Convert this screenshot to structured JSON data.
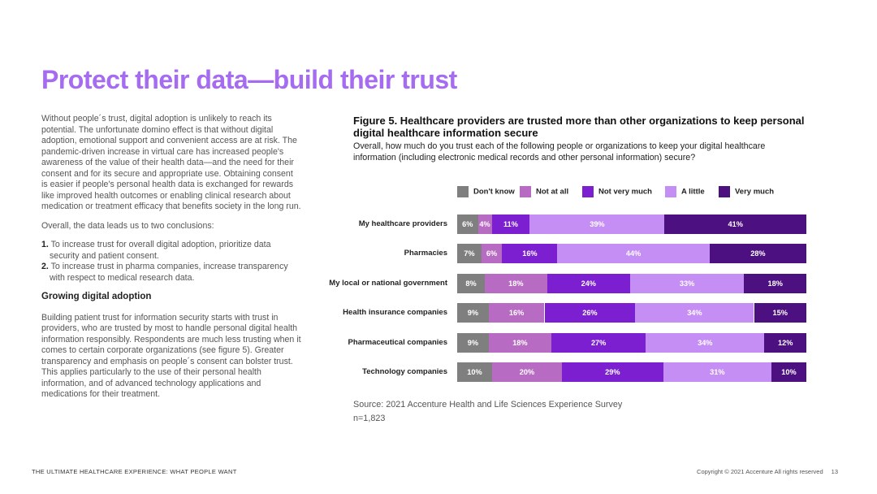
{
  "page": {
    "title": "Protect their data—build their trust",
    "footer_left": "THE ULTIMATE HEALTHCARE EXPERIENCE: WHAT PEOPLE WANT",
    "footer_right": "Copyright © 2021 Accenture All rights reserved",
    "page_number": "13"
  },
  "left": {
    "para1": "Without people´s trust, digital adoption is unlikely to reach its potential. The unfortunate domino effect is that without digital adoption, emotional support and convenient access are at risk. The pandemic-driven increase in virtual care has increased people's awareness of the value of their health data—and the need for their consent and for its secure and appropriate use. Obtaining consent is easier if people's personal health data is exchanged for rewards like improved health outcomes or enabling clinical research about medication or treatment efficacy that benefits society in the long run.",
    "para2": "Overall, the data leads us to two conclusions:",
    "list": [
      {
        "num": "1.",
        "text": "To increase trust for overall digital adoption, prioritize data security and patient consent."
      },
      {
        "num": "2.",
        "text": "To increase trust in pharma companies, increase transparency with respect to medical research data."
      }
    ],
    "heading": "Growing digital adoption",
    "para3": "Building patient trust for information security starts with trust in providers, who are trusted by most to handle personal digital health information responsibly. Respondents are much less trusting when it comes to certain corporate organizations (see figure 5). Greater transparency and emphasis on people´s consent can bolster trust. This applies particularly to the use of their personal health information, and of advanced technology applications and medications for their treatment."
  },
  "figure": {
    "title": "Figure 5. Healthcare providers are trusted more than other organizations to keep personal digital healthcare information secure",
    "subtitle": "Overall, how much do you trust each of the following people or organizations to keep your digital healthcare information (including electronic medical records and other personal information) secure?",
    "source": "Source: 2021 Accenture Health and Life Sciences Experience Survey",
    "n": "n=1,823"
  },
  "colors": {
    "title": "#a56bf0",
    "series": [
      "#7f7f7f",
      "#b86bc2",
      "#7b1fd0",
      "#c58ef5",
      "#4c1080"
    ]
  },
  "chart_data": {
    "type": "bar",
    "orientation": "horizontal",
    "stacked": true,
    "percent_stacked": true,
    "categories": [
      "My healthcare providers",
      "Pharmacies",
      "My local or national government",
      "Health insurance companies",
      "Pharmaceutical companies",
      "Technology companies"
    ],
    "series": [
      {
        "name": "Don't know",
        "values": [
          6,
          7,
          8,
          9,
          9,
          10
        ]
      },
      {
        "name": "Not at all",
        "values": [
          4,
          6,
          18,
          16,
          18,
          20
        ]
      },
      {
        "name": "Not very much",
        "values": [
          11,
          16,
          24,
          26,
          27,
          29
        ]
      },
      {
        "name": "A little",
        "values": [
          39,
          44,
          33,
          34,
          34,
          31
        ]
      },
      {
        "name": "Very much",
        "values": [
          41,
          28,
          18,
          15,
          12,
          10
        ]
      }
    ],
    "value_suffix": "%",
    "legend_position": "top"
  }
}
